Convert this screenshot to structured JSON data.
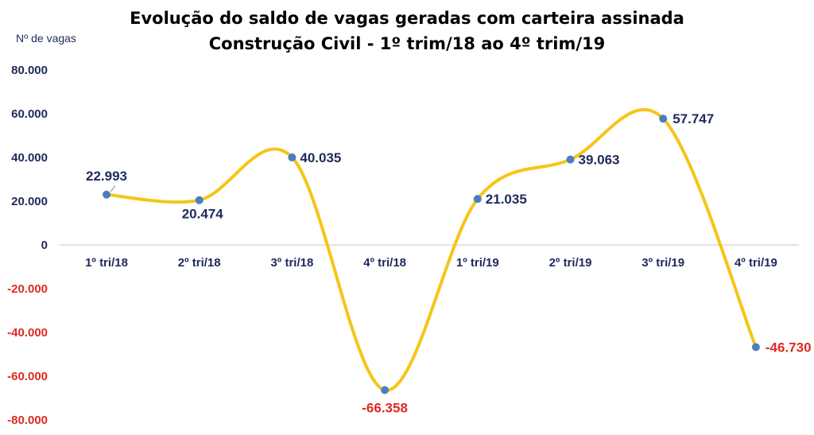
{
  "chart_data": {
    "type": "line",
    "title": "Evolução do saldo de vagas geradas  com carteira assinada",
    "subtitle": "Construção Civil - 1º trim/18 ao 4º trim/19",
    "ylabel": "Nº de vagas",
    "xlabel": "",
    "categories": [
      "1º tri/18",
      "2º tri/18",
      "3º tri/18",
      "4º tri/18",
      "1º tri/19",
      "2º tri/19",
      "3º tri/19",
      "4º tri/19"
    ],
    "values": [
      22993,
      20474,
      40035,
      -66358,
      21035,
      39063,
      57747,
      -46730
    ],
    "data_labels": [
      "22.993",
      "20.474",
      "40.035",
      "-66.358",
      "21.035",
      "39.063",
      "57.747",
      "-46.730"
    ],
    "yticks": [
      80000,
      60000,
      40000,
      20000,
      0,
      -20000,
      -40000,
      -60000,
      -80000
    ],
    "ytick_labels": [
      "80.000",
      "60.000",
      "40.000",
      "20.000",
      "0",
      "-20.000",
      "-40.000",
      "-60.000",
      "-80.000"
    ],
    "ylim": [
      -80000,
      80000
    ],
    "grid": false,
    "legend": "none",
    "colors": {
      "line": "#f5c518",
      "marker": "#4a7ebf",
      "positive_text": "#1f2a5c",
      "negative_text": "#e02a1f",
      "axis": "#d0d0d0"
    }
  }
}
